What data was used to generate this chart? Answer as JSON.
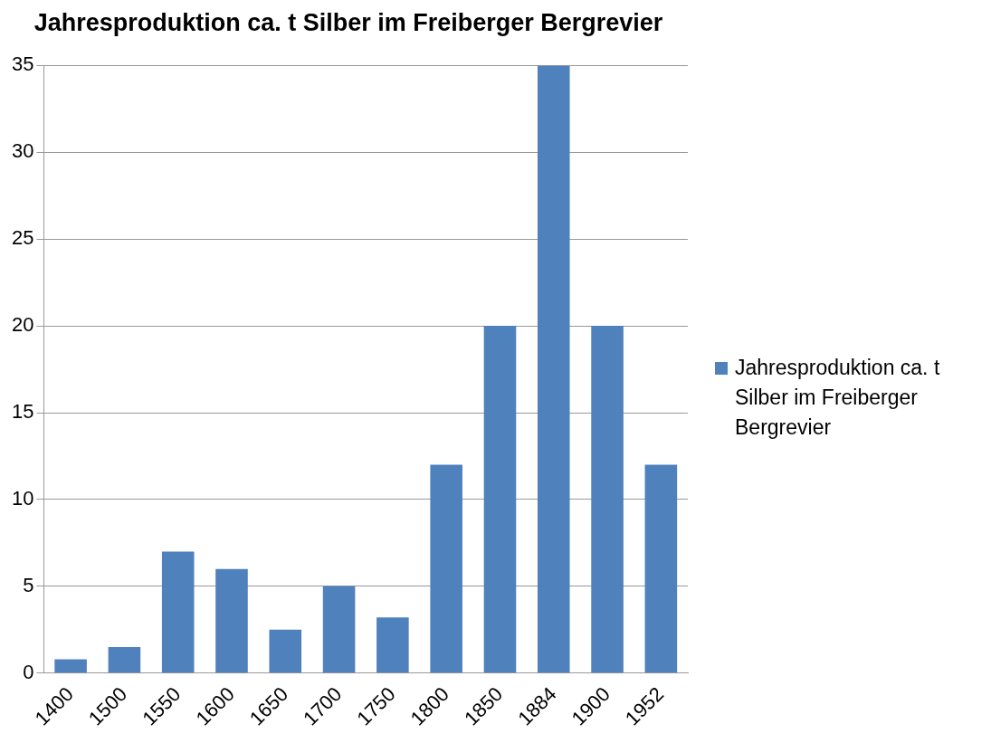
{
  "chart_data": {
    "type": "bar",
    "title": "Jahresproduktion ca. t Silber im Freiberger Bergrevier",
    "categories": [
      "1400",
      "1500",
      "1550",
      "1600",
      "1650",
      "1700",
      "1750",
      "1800",
      "1850",
      "1884",
      "1900",
      "1952"
    ],
    "series": [
      {
        "name": "Jahresproduktion ca. t Silber im Freiberger Bergrevier",
        "color": "#4f81bd",
        "values": [
          0.8,
          1.5,
          7,
          6,
          2.5,
          5,
          3.2,
          12,
          20,
          35,
          20,
          12
        ]
      }
    ],
    "ylim": [
      0,
      35
    ],
    "yticks": [
      0,
      5,
      10,
      15,
      20,
      25,
      30,
      35
    ],
    "grid": "y",
    "legend": "right"
  }
}
